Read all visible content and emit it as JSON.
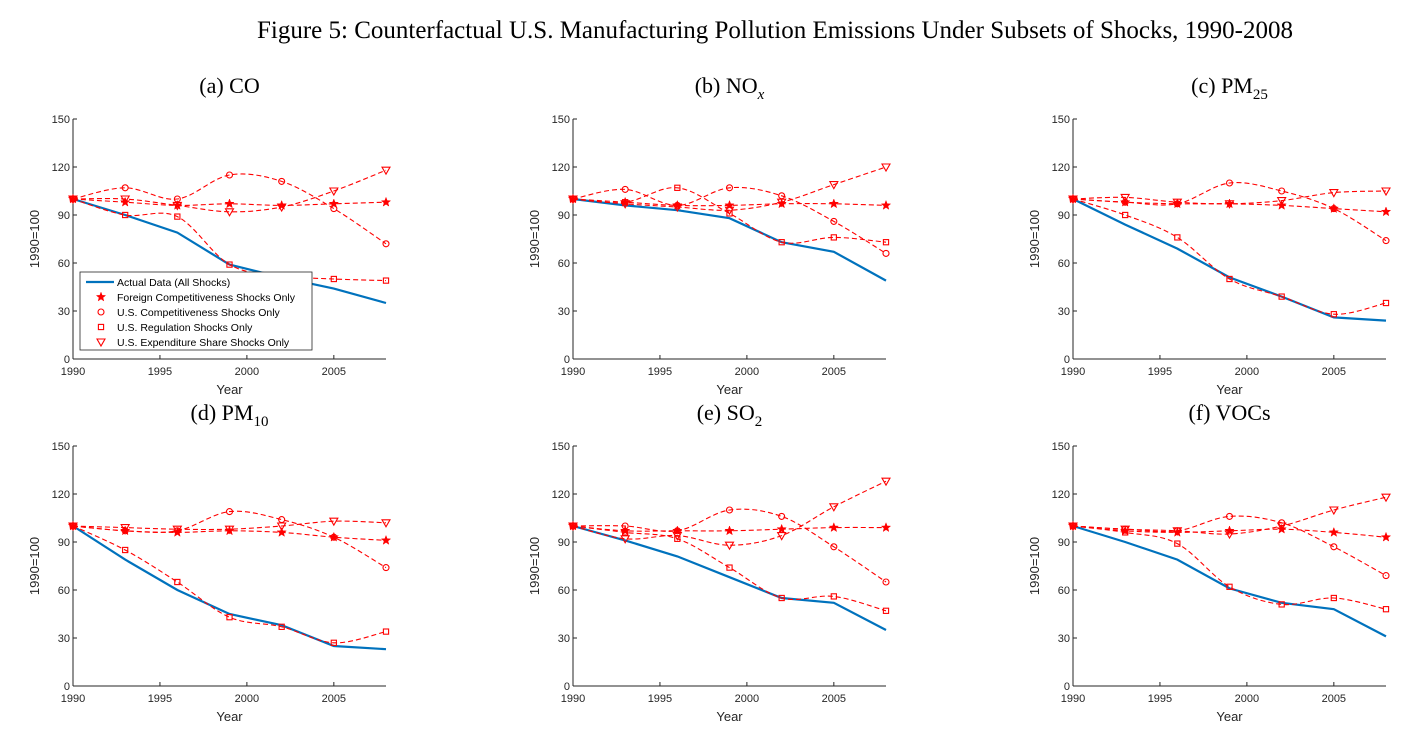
{
  "figure": {
    "title": "Figure 5: Counterfactual U.S. Manufacturing Pollution Emissions Under Subsets of Shocks, 1990-2008"
  },
  "colors": {
    "actual": "#0072BD",
    "counterfactual": "#FF0000"
  },
  "legend": {
    "placement": "inside lower-left of panel (a)",
    "entries": [
      {
        "label": "Actual Data (All Shocks)",
        "marker": "line"
      },
      {
        "label": "Foreign Competitiveness Shocks Only",
        "marker": "star"
      },
      {
        "label": "U.S. Competitiveness Shocks Only",
        "marker": "circle"
      },
      {
        "label": "U.S. Regulation Shocks Only",
        "marker": "square"
      },
      {
        "label": "U.S. Expenditure Share Shocks Only",
        "marker": "triangle-down"
      }
    ]
  },
  "chart_data": [
    {
      "type": "line",
      "panel": "(a)",
      "title_main": "CO",
      "title_sub": "",
      "xlabel": "Year",
      "ylabel": "1990=100",
      "xlim": [
        1990,
        2008
      ],
      "ylim": [
        0,
        150
      ],
      "xticks": [
        1990,
        1995,
        2000,
        2005
      ],
      "yticks": [
        0,
        30,
        60,
        90,
        120,
        150
      ],
      "grid": false,
      "has_legend": true,
      "x": [
        1990,
        1993,
        1996,
        1999,
        2002,
        2005,
        2008
      ],
      "series": [
        {
          "name": "Actual Data (All Shocks)",
          "style": "actual",
          "values": [
            100,
            90,
            79,
            59,
            51,
            44,
            35
          ]
        },
        {
          "name": "Foreign Competitiveness Shocks Only",
          "style": "star",
          "values": [
            100,
            98,
            96,
            97,
            96,
            97,
            98
          ]
        },
        {
          "name": "U.S. Competitiveness Shocks Only",
          "style": "circle",
          "values": [
            100,
            107,
            100,
            115,
            111,
            94,
            72
          ]
        },
        {
          "name": "U.S. Regulation Shocks Only",
          "style": "square",
          "values": [
            100,
            90,
            89,
            59,
            52,
            50,
            49
          ]
        },
        {
          "name": "U.S. Expenditure Share Shocks Only",
          "style": "triangle",
          "values": [
            100,
            100,
            96,
            92,
            95,
            105,
            118
          ]
        }
      ]
    },
    {
      "type": "line",
      "panel": "(b)",
      "title_main": "NO",
      "title_sub": "x",
      "xlabel": "Year",
      "ylabel": "1990=100",
      "xlim": [
        1990,
        2008
      ],
      "ylim": [
        0,
        150
      ],
      "xticks": [
        1990,
        1995,
        2000,
        2005
      ],
      "yticks": [
        0,
        30,
        60,
        90,
        120,
        150
      ],
      "grid": false,
      "has_legend": false,
      "x": [
        1990,
        1993,
        1996,
        1999,
        2002,
        2005,
        2008
      ],
      "series": [
        {
          "name": "Actual Data (All Shocks)",
          "style": "actual",
          "values": [
            100,
            96,
            93,
            88,
            73,
            67,
            49
          ]
        },
        {
          "name": "Foreign Competitiveness Shocks Only",
          "style": "star",
          "values": [
            100,
            98,
            96,
            96,
            97,
            97,
            96
          ]
        },
        {
          "name": "U.S. Competitiveness Shocks Only",
          "style": "circle",
          "values": [
            100,
            106,
            96,
            107,
            102,
            86,
            66
          ]
        },
        {
          "name": "U.S. Regulation Shocks Only",
          "style": "square",
          "values": [
            100,
            98,
            107,
            91,
            73,
            76,
            73
          ]
        },
        {
          "name": "U.S. Expenditure Share Shocks Only",
          "style": "triangle",
          "values": [
            100,
            97,
            95,
            93,
            98,
            109,
            120
          ]
        }
      ]
    },
    {
      "type": "line",
      "panel": "(c)",
      "title_main": "PM",
      "title_sub": "25",
      "xlabel": "Year",
      "ylabel": "1990=100",
      "xlim": [
        1990,
        2008
      ],
      "ylim": [
        0,
        150
      ],
      "xticks": [
        1990,
        1995,
        2000,
        2005
      ],
      "yticks": [
        0,
        30,
        60,
        90,
        120,
        150
      ],
      "grid": false,
      "has_legend": false,
      "x": [
        1990,
        1993,
        1996,
        1999,
        2002,
        2005,
        2008
      ],
      "series": [
        {
          "name": "Actual Data (All Shocks)",
          "style": "actual",
          "values": [
            100,
            84,
            69,
            51,
            39,
            26,
            24
          ]
        },
        {
          "name": "Foreign Competitiveness Shocks Only",
          "style": "star",
          "values": [
            100,
            98,
            97,
            97,
            96,
            94,
            92
          ]
        },
        {
          "name": "U.S. Competitiveness Shocks Only",
          "style": "circle",
          "values": [
            100,
            98,
            97,
            110,
            105,
            94,
            74
          ]
        },
        {
          "name": "U.S. Regulation Shocks Only",
          "style": "square",
          "values": [
            100,
            90,
            76,
            50,
            39,
            28,
            35
          ]
        },
        {
          "name": "U.S. Expenditure Share Shocks Only",
          "style": "triangle",
          "values": [
            100,
            101,
            98,
            97,
            99,
            104,
            105
          ]
        }
      ]
    },
    {
      "type": "line",
      "panel": "(d)",
      "title_main": "PM",
      "title_sub": "10",
      "xlabel": "Year",
      "ylabel": "1990=100",
      "xlim": [
        1990,
        2008
      ],
      "ylim": [
        0,
        150
      ],
      "xticks": [
        1990,
        1995,
        2000,
        2005
      ],
      "yticks": [
        0,
        30,
        60,
        90,
        120,
        150
      ],
      "grid": false,
      "has_legend": false,
      "x": [
        1990,
        1993,
        1996,
        1999,
        2002,
        2005,
        2008
      ],
      "series": [
        {
          "name": "Actual Data (All Shocks)",
          "style": "actual",
          "values": [
            100,
            79,
            60,
            45,
            38,
            25,
            23
          ]
        },
        {
          "name": "Foreign Competitiveness Shocks Only",
          "style": "star",
          "values": [
            100,
            97,
            96,
            97,
            96,
            93,
            91
          ]
        },
        {
          "name": "U.S. Competitiveness Shocks Only",
          "style": "circle",
          "values": [
            100,
            97,
            97,
            109,
            104,
            93,
            74
          ]
        },
        {
          "name": "U.S. Regulation Shocks Only",
          "style": "square",
          "values": [
            100,
            85,
            65,
            43,
            37,
            27,
            34
          ]
        },
        {
          "name": "U.S. Expenditure Share Shocks Only",
          "style": "triangle",
          "values": [
            100,
            99,
            98,
            98,
            100,
            103,
            102
          ]
        }
      ]
    },
    {
      "type": "line",
      "panel": "(e)",
      "title_main": "SO",
      "title_sub": "2",
      "xlabel": "Year",
      "ylabel": "1990=100",
      "xlim": [
        1990,
        2008
      ],
      "ylim": [
        0,
        150
      ],
      "xticks": [
        1990,
        1995,
        2000,
        2005
      ],
      "yticks": [
        0,
        30,
        60,
        90,
        120,
        150
      ],
      "grid": false,
      "has_legend": false,
      "x": [
        1990,
        1993,
        1996,
        1999,
        2002,
        2005,
        2008
      ],
      "series": [
        {
          "name": "Actual Data (All Shocks)",
          "style": "actual",
          "values": [
            100,
            91,
            81,
            68,
            55,
            52,
            35
          ]
        },
        {
          "name": "Foreign Competitiveness Shocks Only",
          "style": "star",
          "values": [
            100,
            97,
            97,
            97,
            98,
            99,
            99
          ]
        },
        {
          "name": "U.S. Competitiveness Shocks Only",
          "style": "circle",
          "values": [
            100,
            100,
            97,
            110,
            106,
            87,
            65
          ]
        },
        {
          "name": "U.S. Regulation Shocks Only",
          "style": "square",
          "values": [
            100,
            96,
            92,
            74,
            55,
            56,
            47
          ]
        },
        {
          "name": "U.S. Expenditure Share Shocks Only",
          "style": "triangle",
          "values": [
            100,
            92,
            94,
            88,
            94,
            112,
            128
          ]
        }
      ]
    },
    {
      "type": "line",
      "panel": "(f)",
      "title_main": "VOCs",
      "title_sub": "",
      "xlabel": "Year",
      "ylabel": "1990=100",
      "xlim": [
        1990,
        2008
      ],
      "ylim": [
        0,
        150
      ],
      "xticks": [
        1990,
        1995,
        2000,
        2005
      ],
      "yticks": [
        0,
        30,
        60,
        90,
        120,
        150
      ],
      "grid": false,
      "has_legend": false,
      "x": [
        1990,
        1993,
        1996,
        1999,
        2002,
        2005,
        2008
      ],
      "series": [
        {
          "name": "Actual Data (All Shocks)",
          "style": "actual",
          "values": [
            100,
            90,
            79,
            61,
            52,
            48,
            31
          ]
        },
        {
          "name": "Foreign Competitiveness Shocks Only",
          "style": "star",
          "values": [
            100,
            97,
            96,
            97,
            98,
            96,
            93
          ]
        },
        {
          "name": "U.S. Competitiveness Shocks Only",
          "style": "circle",
          "values": [
            100,
            98,
            97,
            106,
            102,
            87,
            69
          ]
        },
        {
          "name": "U.S. Regulation Shocks Only",
          "style": "square",
          "values": [
            100,
            96,
            89,
            62,
            51,
            55,
            48
          ]
        },
        {
          "name": "U.S. Expenditure Share Shocks Only",
          "style": "triangle",
          "values": [
            100,
            98,
            97,
            95,
            100,
            110,
            118
          ]
        }
      ]
    }
  ]
}
